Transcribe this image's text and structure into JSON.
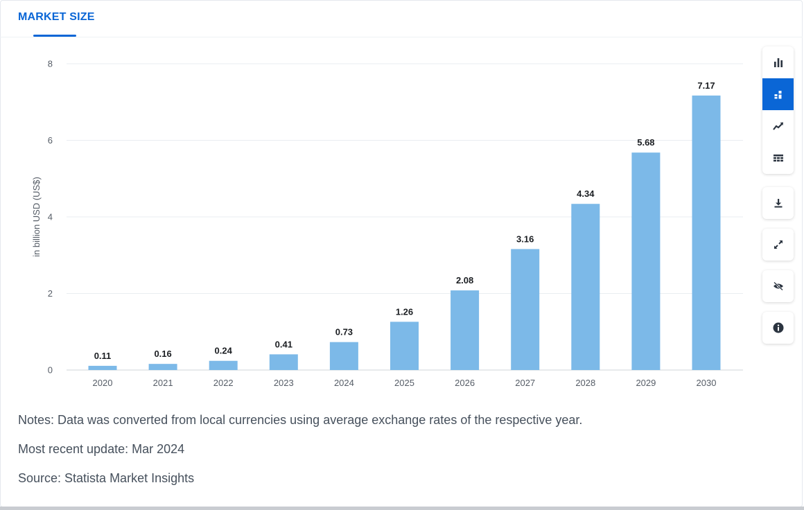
{
  "tab": {
    "label": "MARKET SIZE"
  },
  "chart_data": {
    "type": "bar",
    "title": "",
    "xlabel": "",
    "ylabel": "in billion USD (US$)",
    "categories": [
      "2020",
      "2021",
      "2022",
      "2023",
      "2024",
      "2025",
      "2026",
      "2027",
      "2028",
      "2029",
      "2030"
    ],
    "values": [
      0.11,
      0.16,
      0.24,
      0.41,
      0.73,
      1.26,
      2.08,
      3.16,
      4.34,
      5.68,
      7.17
    ],
    "value_labels": [
      "0.11",
      "0.16",
      "0.24",
      "0.41",
      "0.73",
      "1.26",
      "2.08",
      "3.16",
      "4.34",
      "5.68",
      "7.17"
    ],
    "ylim": [
      0,
      8
    ],
    "yticks": [
      0,
      2,
      4,
      6,
      8
    ],
    "grid": true,
    "bar_color": "#7cb9e8"
  },
  "toolbar": {
    "accent": "#0a66d6",
    "icons": [
      "bar-chart-icon",
      "stacked-chart-icon",
      "trend-line-icon",
      "table-grid-icon",
      "download-icon",
      "expand-icon",
      "hide-eye-icon",
      "info-icon"
    ]
  },
  "notes": {
    "note": "Notes: Data was converted from local currencies using average exchange rates of the respective year.",
    "update": "Most recent update: Mar 2024",
    "source": "Source: Statista Market Insights"
  }
}
